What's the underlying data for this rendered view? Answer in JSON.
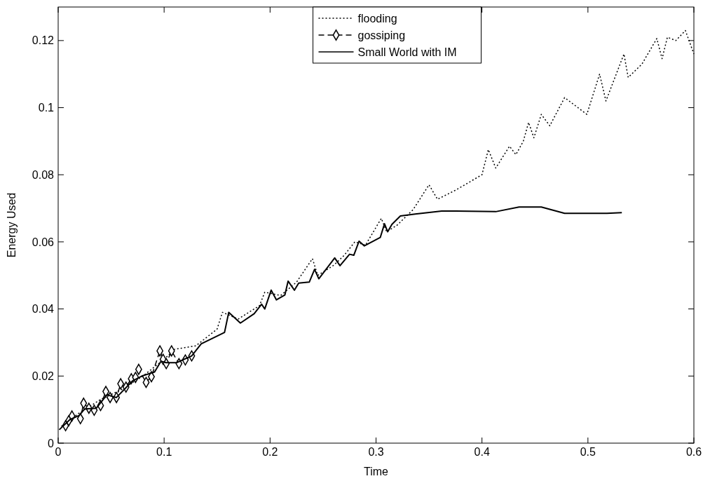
{
  "chart_data": {
    "type": "line",
    "xlabel": "Time",
    "ylabel": "Energy Used",
    "xlim": [
      0,
      0.6
    ],
    "ylim": [
      0,
      0.13
    ],
    "xticks": [
      0,
      0.1,
      0.2,
      0.3,
      0.4,
      0.5,
      0.6
    ],
    "yticks": [
      0,
      0.02,
      0.04,
      0.06,
      0.08,
      0.1,
      0.12
    ],
    "legend": "top",
    "grid": false,
    "series": [
      {
        "name": "flooding",
        "color": "#000000",
        "line_style": "dotted",
        "marker": "none",
        "x": [
          0.003,
          0.02,
          0.04,
          0.06,
          0.08,
          0.1,
          0.11,
          0.13,
          0.15,
          0.155,
          0.17,
          0.19,
          0.195,
          0.21,
          0.225,
          0.24,
          0.245,
          0.26,
          0.27,
          0.28,
          0.29,
          0.305,
          0.31,
          0.32,
          0.335,
          0.35,
          0.358,
          0.375,
          0.4,
          0.406,
          0.413,
          0.426,
          0.432,
          0.439,
          0.444,
          0.449,
          0.456,
          0.464,
          0.478,
          0.499,
          0.511,
          0.517,
          0.534,
          0.538,
          0.551,
          0.565,
          0.57,
          0.575,
          0.583,
          0.592,
          0.6
        ],
        "values": [
          0.005,
          0.009,
          0.013,
          0.016,
          0.02,
          0.025,
          0.028,
          0.029,
          0.034,
          0.039,
          0.037,
          0.041,
          0.045,
          0.044,
          0.048,
          0.055,
          0.05,
          0.053,
          0.056,
          0.06,
          0.059,
          0.067,
          0.063,
          0.065,
          0.0696,
          0.077,
          0.0727,
          0.0754,
          0.08,
          0.0875,
          0.082,
          0.0885,
          0.086,
          0.09,
          0.0956,
          0.091,
          0.098,
          0.0946,
          0.103,
          0.098,
          0.11,
          0.102,
          0.116,
          0.109,
          0.113,
          0.1206,
          0.1146,
          0.121,
          0.12,
          0.123,
          0.116
        ]
      },
      {
        "name": "gossiping",
        "color": "#000000",
        "line_style": "dashed",
        "marker": "diamond",
        "x": [
          0.007,
          0.01,
          0.013,
          0.021,
          0.024,
          0.029,
          0.034,
          0.04,
          0.045,
          0.049,
          0.055,
          0.059,
          0.064,
          0.069,
          0.073,
          0.076,
          0.083,
          0.088,
          0.096,
          0.099,
          0.102,
          0.107,
          0.114,
          0.12,
          0.126
        ],
        "values": [
          0.0052,
          0.0067,
          0.0081,
          0.0073,
          0.0119,
          0.0104,
          0.0098,
          0.0112,
          0.0154,
          0.0136,
          0.0136,
          0.0177,
          0.0167,
          0.0192,
          0.0196,
          0.022,
          0.0181,
          0.0198,
          0.0275,
          0.025,
          0.0237,
          0.0275,
          0.0237,
          0.0248,
          0.026
        ]
      },
      {
        "name": "Small World with IM",
        "color": "#000000",
        "line_style": "solid",
        "marker": "none",
        "x": [
          0.001,
          0.011,
          0.02,
          0.025,
          0.036,
          0.046,
          0.055,
          0.07,
          0.079,
          0.091,
          0.097,
          0.102,
          0.112,
          0.126,
          0.135,
          0.157,
          0.161,
          0.172,
          0.185,
          0.192,
          0.195,
          0.201,
          0.206,
          0.214,
          0.217,
          0.223,
          0.227,
          0.237,
          0.242,
          0.246,
          0.261,
          0.266,
          0.275,
          0.279,
          0.284,
          0.289,
          0.304,
          0.308,
          0.311,
          0.315,
          0.323,
          0.337,
          0.362,
          0.375,
          0.413,
          0.435,
          0.456,
          0.478,
          0.518,
          0.532
        ],
        "values": [
          0.004,
          0.007,
          0.0083,
          0.0102,
          0.0104,
          0.0144,
          0.0136,
          0.0185,
          0.02,
          0.0212,
          0.0244,
          0.024,
          0.024,
          0.026,
          0.0296,
          0.033,
          0.039,
          0.0358,
          0.0386,
          0.0414,
          0.04,
          0.0456,
          0.0427,
          0.0442,
          0.0483,
          0.0456,
          0.0477,
          0.048,
          0.0518,
          0.049,
          0.0552,
          0.0529,
          0.0563,
          0.056,
          0.0602,
          0.0588,
          0.0613,
          0.0654,
          0.063,
          0.0652,
          0.0677,
          0.0683,
          0.0692,
          0.0692,
          0.069,
          0.0704,
          0.0704,
          0.0685,
          0.0685,
          0.0687
        ]
      }
    ]
  }
}
